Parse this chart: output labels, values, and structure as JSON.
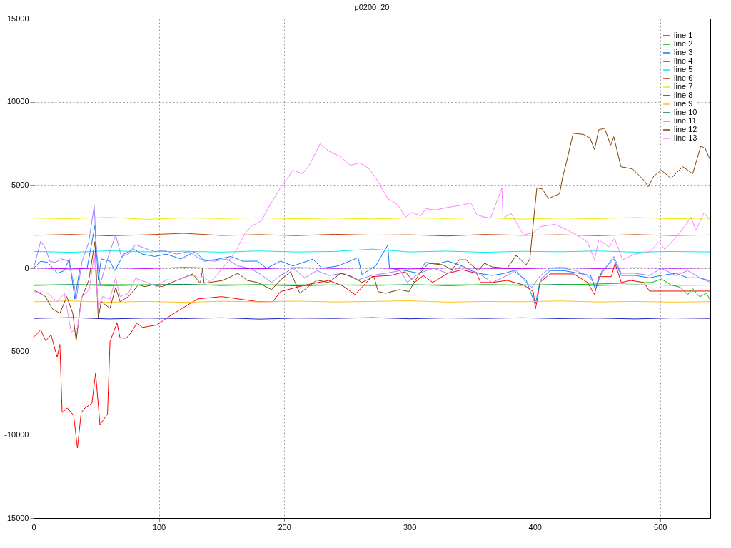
{
  "chart_data": {
    "type": "line",
    "title": "p0200_20",
    "xlim": [
      0,
      540
    ],
    "xticks": [
      0,
      100,
      200,
      300,
      400,
      500
    ],
    "ylim": [
      -15000,
      15000
    ],
    "yticks": [
      -15000,
      -10000,
      -5000,
      0,
      5000,
      10000,
      15000
    ],
    "grid": true,
    "legend": "top right",
    "marker": "none",
    "line_style": "solid",
    "series": [
      {
        "name": "line 1",
        "color": "#ff0000",
        "x": [
          0,
          5.7,
          9.7,
          14,
          18.8,
          21,
          22.8,
          27,
          32,
          35,
          38,
          41,
          46.6,
          49.5,
          53,
          59,
          61,
          66.6,
          69,
          74,
          78,
          82.5,
          87,
          98.5,
          106,
          118,
          131,
          150,
          178.6,
          191,
          197,
          217,
          235.5,
          247,
          256.5,
          270,
          285,
          296.5,
          304,
          311,
          318.5,
          330.5,
          342,
          353.5,
          356.7,
          366,
          378,
          391,
          398.7,
          400.5,
          402,
          404,
          412,
          431,
          442,
          447.6,
          451,
          461,
          464,
          469,
          476.6,
          487,
          491.5,
          540
        ],
        "values": [
          -4140,
          -3700,
          -4350,
          -4000,
          -5340,
          -4570,
          -8670,
          -8400,
          -8840,
          -10800,
          -8670,
          -8400,
          -8100,
          -6300,
          -9400,
          -8750,
          -4400,
          -3280,
          -4180,
          -4200,
          -3840,
          -3280,
          -3550,
          -3400,
          -3000,
          -2430,
          -1840,
          -1700,
          -2000,
          -2000,
          -1400,
          -1000,
          -730,
          -1070,
          -1580,
          -500,
          -430,
          -210,
          -850,
          -430,
          -850,
          -300,
          -90,
          -300,
          -850,
          -850,
          -730,
          -1000,
          -1400,
          -2430,
          -1840,
          -850,
          -340,
          -340,
          -850,
          -1580,
          -500,
          -500,
          300,
          -850,
          -730,
          -850,
          -1370,
          -1370
        ]
      },
      {
        "name": "line 2",
        "color": "#00c000",
        "x": [
          0,
          60,
          120,
          180,
          240,
          300,
          360,
          420,
          493.5,
          501,
          508.6,
          516,
          522,
          526,
          531.6,
          537,
          540
        ],
        "values": [
          -1000,
          -980,
          -1000,
          -990,
          -1000,
          -1000,
          -990,
          -1000,
          -850,
          -640,
          -1000,
          -1140,
          -1580,
          -1220,
          -1710,
          -1500,
          -1920
        ]
      },
      {
        "name": "line 3",
        "color": "#0080ff",
        "x": [
          0,
          5.7,
          11.4,
          19,
          24.6,
          28.4,
          33,
          37,
          42.7,
          49,
          51.6,
          54,
          61,
          64.8,
          72,
          80,
          87,
          96.6,
          106,
          117.5,
          129,
          136.5,
          148,
          157.5,
          167,
          178.6,
          186,
          197,
          207,
          223,
          230,
          243,
          259,
          262,
          273,
          282.7,
          284,
          296.5,
          307.7,
          312.5,
          323,
          330.5,
          342,
          349,
          355,
          366,
          376,
          383,
          393,
          398.7,
          400.5,
          404.4,
          412,
          423,
          435,
          444.5,
          448.4,
          453.6,
          463,
          469,
          480,
          491.5,
          501,
          512.5,
          522,
          531.6,
          540
        ],
        "values": [
          0,
          420,
          350,
          -300,
          -140,
          560,
          -1850,
          0,
          0,
          2560,
          -710,
          560,
          420,
          -140,
          850,
          1140,
          850,
          710,
          850,
          560,
          1000,
          420,
          560,
          710,
          420,
          430,
          0,
          430,
          140,
          550,
          0,
          140,
          640,
          -370,
          140,
          1400,
          0,
          -140,
          -300,
          350,
          280,
          430,
          140,
          -140,
          -300,
          -430,
          -300,
          -140,
          -710,
          -1850,
          -2130,
          -710,
          -140,
          -140,
          -300,
          -430,
          -1280,
          -140,
          560,
          -430,
          -430,
          -570,
          -430,
          -300,
          -570,
          -570,
          -760
        ]
      },
      {
        "name": "line 4",
        "color": "#c000ff",
        "x": [
          0,
          30,
          60,
          90,
          120,
          150,
          180,
          210,
          240,
          270,
          300,
          330,
          360,
          390,
          420,
          450,
          480,
          510,
          540
        ],
        "values": [
          20,
          -40,
          30,
          -20,
          50,
          0,
          -30,
          40,
          -10,
          30,
          -40,
          20,
          0,
          -30,
          40,
          -20,
          30,
          -10,
          20
        ]
      },
      {
        "name": "line 5",
        "color": "#00eeee",
        "x": [
          0,
          30,
          60,
          90,
          120,
          150,
          180,
          210,
          240,
          270,
          300,
          330,
          360,
          390,
          420,
          450,
          480,
          510,
          540
        ],
        "values": [
          1010,
          960,
          1050,
          990,
          1020,
          970,
          1040,
          980,
          1010,
          1150,
          980,
          1030,
          960,
          1020,
          990,
          1040,
          970,
          1010,
          980
        ]
      },
      {
        "name": "line 6",
        "color": "#c04000",
        "x": [
          0,
          30,
          60,
          90,
          120,
          150,
          180,
          210,
          240,
          270,
          300,
          330,
          360,
          390,
          420,
          450,
          480,
          510,
          540
        ],
        "values": [
          1980,
          2030,
          1950,
          2010,
          2100,
          1970,
          2020,
          1960,
          2040,
          1990,
          2010,
          1940,
          2030,
          1980,
          2010,
          1960,
          2020,
          1970,
          2000
        ]
      },
      {
        "name": "line 7",
        "color": "#eeee00",
        "x": [
          0,
          30,
          60,
          90,
          120,
          150,
          180,
          210,
          240,
          270,
          300,
          330,
          360,
          390,
          420,
          450,
          480,
          510,
          540
        ],
        "values": [
          3010,
          2980,
          3060,
          2940,
          3020,
          2990,
          3030,
          2970,
          3010,
          2960,
          3020,
          2990,
          3040,
          2950,
          3010,
          2980,
          3050,
          2970,
          3010
        ]
      },
      {
        "name": "line 8",
        "color": "#2020c0",
        "x": [
          0,
          30,
          60,
          90,
          120,
          150,
          180,
          210,
          240,
          270,
          300,
          330,
          360,
          390,
          420,
          450,
          480,
          510,
          540
        ],
        "values": [
          -3010,
          -2960,
          -3040,
          -2990,
          -3020,
          -2970,
          -3050,
          -2990,
          -3010,
          -2960,
          -3030,
          -2980,
          -3010,
          -2970,
          -3020,
          -2990,
          -3040,
          -2980,
          -3010
        ]
      },
      {
        "name": "line 9",
        "color": "#ffc020",
        "x": [
          0,
          30,
          60,
          90,
          120,
          150,
          180,
          210,
          240,
          270,
          300,
          330,
          360,
          390,
          420,
          450,
          480,
          510,
          540
        ],
        "values": [
          -2010,
          -1960,
          -2030,
          -1990,
          -2040,
          -1980,
          -2010,
          -1970,
          -2020,
          -1990,
          -1950,
          -2030,
          -1990,
          -2010,
          -1960,
          -2020,
          -1990,
          -2030,
          -2000
        ]
      },
      {
        "name": "line 10",
        "color": "#008040",
        "x": [
          0,
          30,
          60,
          90,
          120,
          150,
          180,
          210,
          240,
          270,
          300,
          330,
          360,
          390,
          420,
          450,
          480,
          510,
          540
        ],
        "values": [
          -1030,
          -980,
          -1040,
          -1000,
          -960,
          -1030,
          -990,
          -1050,
          -1000,
          -1030,
          -980,
          -1040,
          -990,
          -1020,
          -970,
          -1030,
          -990,
          -1020,
          -1010
        ]
      },
      {
        "name": "line 11",
        "color": "#a080ff",
        "x": [
          0,
          5.7,
          9.5,
          13,
          17,
          22.7,
          28,
          32.4,
          34,
          38.7,
          44,
          48.4,
          50,
          53,
          59,
          65.5,
          70,
          75.7,
          81.4,
          89,
          96.6,
          104,
          114,
          123.6,
          133,
          144.4,
          154,
          163,
          172.6,
          181,
          190,
          197,
          207,
          216.6,
          226,
          235.5,
          247,
          258.5,
          270,
          281,
          292.6,
          298.3,
          307.7,
          319,
          330.5,
          342,
          355,
          366,
          378,
          385,
          393,
          397.6,
          404.4,
          412,
          423,
          432.6,
          442,
          448.8,
          453.6,
          463,
          469,
          480,
          491.5,
          501,
          512.5,
          522,
          531.6,
          540
        ],
        "values": [
          0,
          1620,
          1200,
          420,
          350,
          560,
          420,
          -1000,
          -1850,
          420,
          1560,
          3760,
          1280,
          -1000,
          560,
          2000,
          700,
          850,
          1420,
          1200,
          1000,
          1070,
          850,
          1000,
          560,
          420,
          560,
          140,
          0,
          -350,
          -850,
          -430,
          0,
          -570,
          -140,
          -430,
          -300,
          -710,
          -430,
          -300,
          -140,
          -850,
          -300,
          0,
          -300,
          140,
          -300,
          -850,
          -430,
          -140,
          -850,
          -1150,
          -430,
          0,
          0,
          -140,
          -430,
          -1000,
          -300,
          710,
          -300,
          -300,
          -430,
          0,
          -430,
          -140,
          -570,
          -850
        ]
      },
      {
        "name": "line 12",
        "color": "#804000",
        "x": [
          0,
          9.5,
          15,
          21,
          26.5,
          31.3,
          34,
          38,
          44,
          49,
          51.6,
          54,
          61,
          65.5,
          69,
          75.7,
          83.6,
          89,
          95,
          103,
          114,
          127,
          133,
          135,
          136,
          151,
          163,
          170.6,
          178.6,
          190,
          197,
          205,
          212.5,
          226,
          235.5,
          245,
          254,
          262,
          271.6,
          275,
          281,
          292,
          299.5,
          307,
          315,
          326.6,
          334,
          339.6,
          345,
          354.6,
          360,
          366,
          378,
          385,
          393,
          396,
          399.5,
          401.6,
          406,
          410.7,
          419.7,
          422,
          426,
          430.6,
          438.6,
          444,
          447.6,
          451,
          455.6,
          460.5,
          463,
          468.7,
          478,
          487.5,
          490.4,
          495,
          501,
          508.6,
          518,
          526,
          532.4,
          536,
          540
        ],
        "values": [
          -1280,
          -1700,
          -2430,
          -2700,
          -1700,
          -2700,
          -4350,
          -1850,
          -730,
          1600,
          -3000,
          -2000,
          -2400,
          -1150,
          -2000,
          -1700,
          -1000,
          -1100,
          -1000,
          -1100,
          -730,
          -340,
          -900,
          0,
          -900,
          -730,
          -300,
          -730,
          -850,
          -1280,
          -710,
          -210,
          -1500,
          -710,
          -850,
          -300,
          -500,
          -850,
          -500,
          -1400,
          -1500,
          -1280,
          -1400,
          -430,
          300,
          210,
          -90,
          510,
          510,
          -130,
          300,
          80,
          0,
          770,
          210,
          550,
          3290,
          4830,
          4760,
          4190,
          4480,
          5420,
          6620,
          8110,
          8040,
          7830,
          7130,
          8320,
          8410,
          7400,
          7900,
          6100,
          5970,
          5250,
          4900,
          5540,
          5890,
          5400,
          6100,
          5680,
          7340,
          7190,
          6490
        ]
      },
      {
        "name": "line 13",
        "color": "#ff80ff",
        "x": [
          0,
          11,
          19,
          24.6,
          30,
          35,
          38.7,
          44.5,
          48.4,
          51.6,
          55,
          61,
          65.5,
          69,
          75.7,
          81.4,
          89,
          98.5,
          106,
          114,
          123.6,
          133,
          140.6,
          144.4,
          151.8,
          161,
          169,
          174.6,
          182,
          188,
          197,
          207,
          214.6,
          220,
          228.7,
          235.5,
          245,
          252.7,
          260.3,
          268,
          275,
          282.6,
          290.3,
          297,
          301.6,
          309,
          313,
          320.6,
          330,
          341.6,
          349,
          353.8,
          360.5,
          364.6,
          373.7,
          374.6,
          381,
          391,
          398.7,
          404.4,
          416,
          427,
          436.6,
          442,
          447.6,
          451,
          459,
          463.6,
          470,
          480,
          491.5,
          499,
          503.7,
          512.5,
          518,
          524.6,
          528.5,
          535,
          540
        ],
        "values": [
          -1400,
          -1500,
          -2000,
          -1500,
          -3840,
          -3600,
          -1700,
          -1280,
          850,
          -2350,
          -1700,
          -1850,
          -560,
          -1700,
          -1500,
          -600,
          -800,
          -1100,
          -680,
          -730,
          -470,
          -400,
          -800,
          -560,
          90,
          980,
          2140,
          2560,
          2860,
          3720,
          4830,
          5890,
          5680,
          6190,
          7470,
          7040,
          6700,
          6190,
          6330,
          5970,
          5200,
          4190,
          3830,
          3070,
          3360,
          3150,
          3580,
          3500,
          3650,
          3790,
          3930,
          3200,
          3070,
          3000,
          4830,
          3000,
          3290,
          2000,
          2140,
          2500,
          2640,
          2260,
          1850,
          1570,
          510,
          1710,
          1280,
          1780,
          510,
          850,
          980,
          1570,
          1140,
          1850,
          2350,
          3070,
          2280,
          3330,
          2900
        ]
      }
    ]
  }
}
